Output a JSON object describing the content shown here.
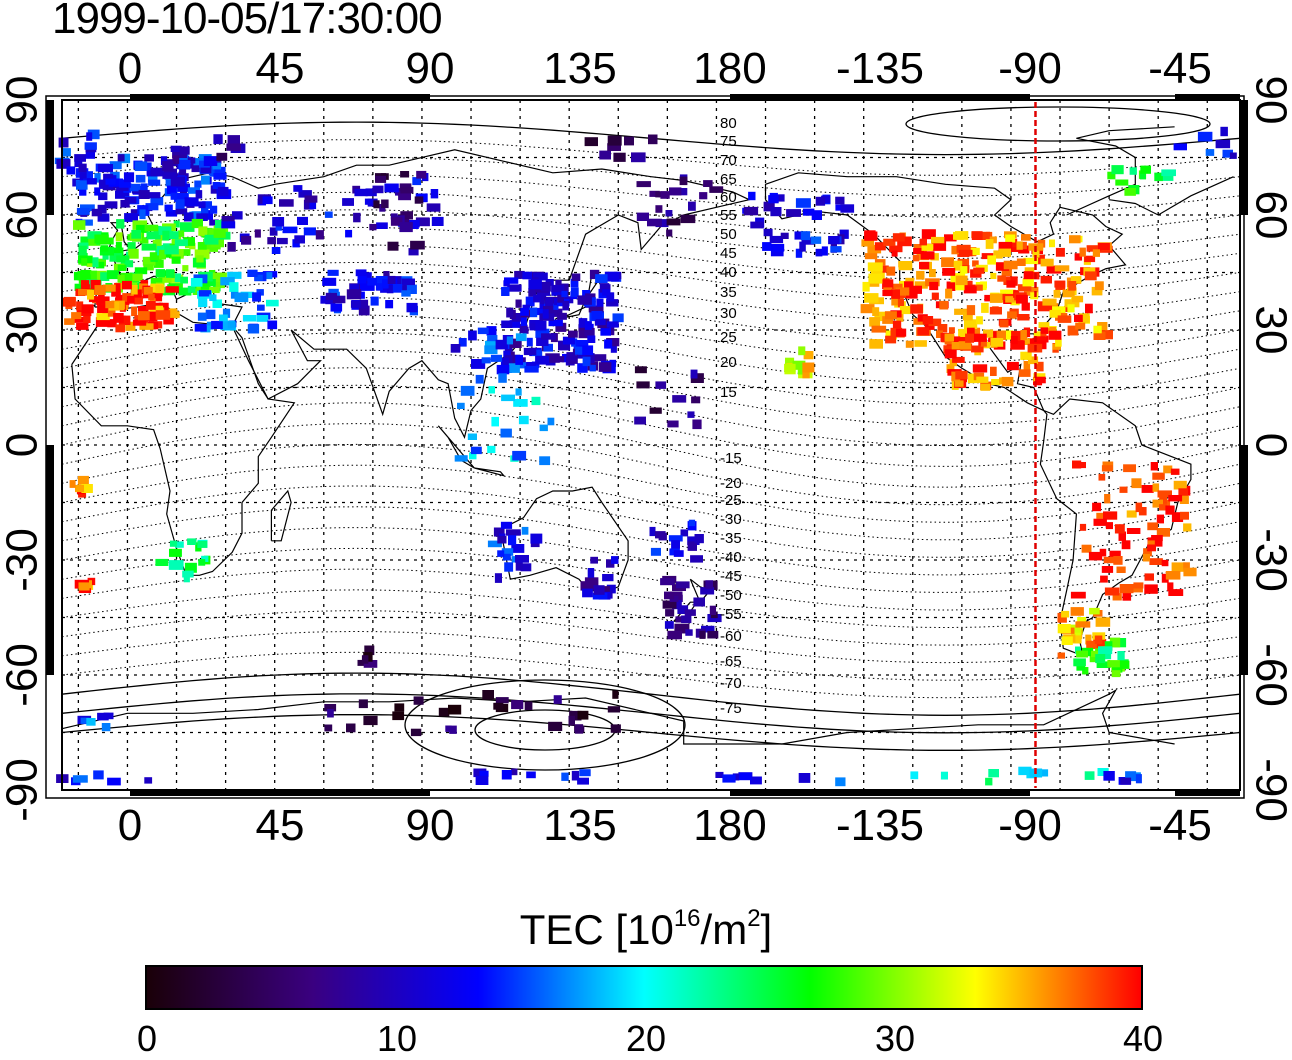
{
  "title": "1999-10-05/17:30:00",
  "map": {
    "lon_tick_labels": [
      "0",
      "45",
      "90",
      "135",
      "180",
      "-135",
      "-90",
      "-45"
    ],
    "lat_tick_labels": [
      "90",
      "60",
      "30",
      "0",
      "-30",
      "-60",
      "-90"
    ],
    "contour_labels": [
      "80",
      "75",
      "70",
      "65",
      "60",
      "55",
      "50",
      "45",
      "40",
      "35",
      "30",
      "25",
      "20",
      "15",
      "-15",
      "-20",
      "-25",
      "-30",
      "-35",
      "-40",
      "-45",
      "-50",
      "-55",
      "-60",
      "-65",
      "-70",
      "-75"
    ],
    "meridian_line_color": "#e00000",
    "meridian_longitude": -82.5
  },
  "colorbar": {
    "title_main": "TEC  [10",
    "title_exp": "16",
    "title_unit": "/m",
    "title_exp2": "2",
    "title_close": "]",
    "ticks": [
      "0",
      "10",
      "20",
      "30",
      "40"
    ],
    "stops": [
      "#1a0008",
      "#3a0080",
      "#0000ff",
      "#00ffff",
      "#00ff00",
      "#ffff00",
      "#ff0000"
    ]
  }
}
